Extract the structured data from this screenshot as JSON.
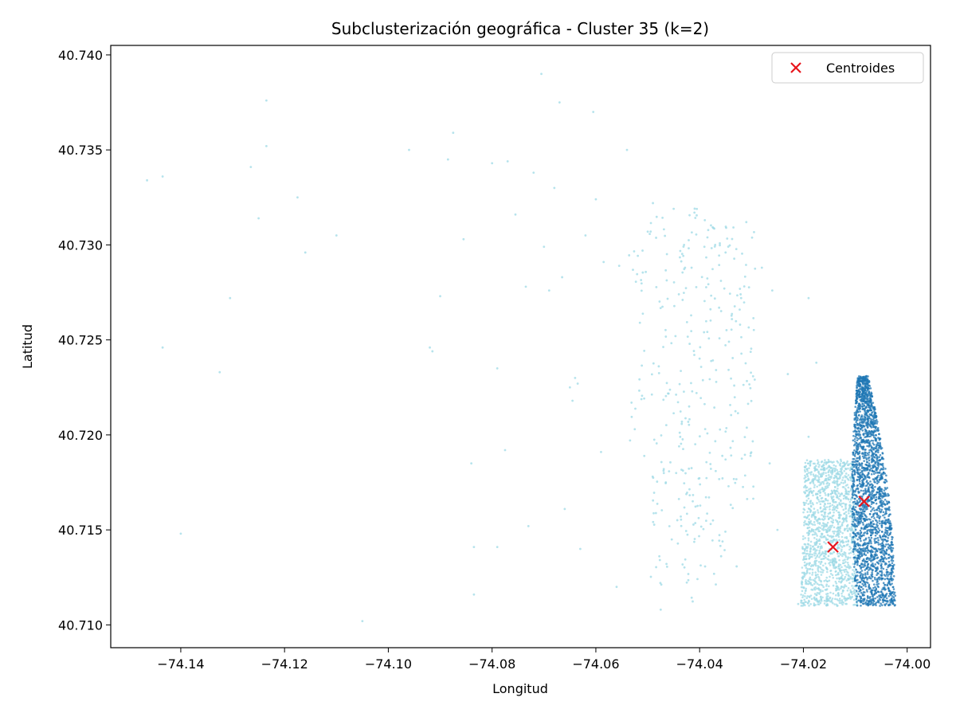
{
  "chart_data": {
    "type": "scatter",
    "title": "Subclusterización geográfica - Cluster 35 (k=2)",
    "xlabel": "Longitud",
    "ylabel": "Latitud",
    "xlim": [
      -74.1535,
      -73.9955
    ],
    "ylim": [
      40.7088,
      40.7405
    ],
    "xticks": [
      -74.14,
      -74.12,
      -74.1,
      -74.08,
      -74.06,
      -74.04,
      -74.02,
      -74.0
    ],
    "xtick_labels": [
      "−74.14",
      "−74.12",
      "−74.10",
      "−74.08",
      "−74.06",
      "−74.04",
      "−74.02",
      "−74.00"
    ],
    "yticks": [
      40.71,
      40.715,
      40.72,
      40.725,
      40.73,
      40.735,
      40.74
    ],
    "ytick_labels": [
      "40.710",
      "40.715",
      "40.720",
      "40.725",
      "40.730",
      "40.735",
      "40.740"
    ],
    "grid": false,
    "legend": {
      "placement": "top-right",
      "entries": [
        "Centroides"
      ]
    },
    "colors": {
      "light_cluster": "#9edae5",
      "dark_cluster": "#1f77b4",
      "centroid": "#e8141b"
    },
    "series": [
      {
        "name": "",
        "color": "#9edae5",
        "description_points": [
          [
            -74.1465,
            40.7334
          ],
          [
            -74.1435,
            40.7336
          ],
          [
            -74.1435,
            40.7246
          ],
          [
            -74.14,
            40.7148
          ],
          [
            -74.1325,
            40.7233
          ],
          [
            -74.1305,
            40.7272
          ],
          [
            -74.1265,
            40.7341
          ],
          [
            -74.125,
            40.7314
          ],
          [
            -74.1235,
            40.7376
          ],
          [
            -74.1235,
            40.7352
          ],
          [
            -74.1175,
            40.7325
          ],
          [
            -74.116,
            40.7296
          ],
          [
            -74.11,
            40.7305
          ],
          [
            -74.105,
            40.7102
          ],
          [
            -74.096,
            40.735
          ],
          [
            -74.092,
            40.7246
          ],
          [
            -74.0915,
            40.7244
          ],
          [
            -74.09,
            40.7273
          ],
          [
            -74.0885,
            40.7345
          ],
          [
            -74.0875,
            40.7359
          ],
          [
            -74.0855,
            40.7303
          ],
          [
            -74.084,
            40.7185
          ],
          [
            -74.0835,
            40.7141
          ],
          [
            -74.0835,
            40.7116
          ],
          [
            -74.08,
            40.7343
          ],
          [
            -74.079,
            40.7235
          ],
          [
            -74.079,
            40.7141
          ],
          [
            -74.0775,
            40.7192
          ],
          [
            -74.077,
            40.7344
          ],
          [
            -74.0755,
            40.7316
          ],
          [
            -74.0735,
            40.7278
          ],
          [
            -74.073,
            40.7152
          ],
          [
            -74.072,
            40.7338
          ],
          [
            -74.0705,
            40.739
          ],
          [
            -74.07,
            40.7299
          ],
          [
            -74.069,
            40.7276
          ],
          [
            -74.068,
            40.733
          ],
          [
            -74.067,
            40.7375
          ],
          [
            -74.0665,
            40.7283
          ],
          [
            -74.066,
            40.7161
          ],
          [
            -74.065,
            40.7225
          ],
          [
            -74.0645,
            40.7218
          ],
          [
            -74.064,
            40.723
          ],
          [
            -74.0635,
            40.7227
          ],
          [
            -74.063,
            40.714
          ],
          [
            -74.062,
            40.7305
          ],
          [
            -74.0605,
            40.737
          ],
          [
            -74.06,
            40.7324
          ],
          [
            -74.059,
            40.7191
          ],
          [
            -74.0585,
            40.7291
          ],
          [
            -74.056,
            40.712
          ],
          [
            -74.0555,
            40.7289
          ],
          [
            -74.054,
            40.735
          ],
          [
            -74.0525,
            40.7203
          ],
          [
            -74.051,
            40.7297
          ],
          [
            -74.05,
            40.7307
          ],
          [
            -74.049,
            40.7322
          ],
          [
            -74.0475,
            40.7108
          ],
          [
            -74.045,
            40.7319
          ],
          [
            -74.043,
            40.73
          ],
          [
            -74.041,
            40.7317
          ],
          [
            -74.039,
            40.7313
          ],
          [
            -74.037,
            40.73
          ],
          [
            -74.035,
            40.7296
          ],
          [
            -74.032,
            40.7272
          ],
          [
            -74.031,
            40.7312
          ],
          [
            -74.028,
            40.7288
          ],
          [
            -74.026,
            40.7276
          ],
          [
            -74.0265,
            40.7185
          ],
          [
            -74.025,
            40.715
          ],
          [
            -74.023,
            40.7232
          ],
          [
            -74.021,
            40.7111
          ],
          [
            -74.019,
            40.7272
          ],
          [
            -74.0175,
            40.7238
          ],
          [
            -74.019,
            40.7199
          ]
        ]
      },
      {
        "name": "",
        "color": "#1f77b4",
        "description_points": []
      }
    ],
    "centroids": [
      {
        "x": -74.0143,
        "y": 40.7141
      },
      {
        "x": -74.0083,
        "y": 40.7165
      }
    ]
  }
}
